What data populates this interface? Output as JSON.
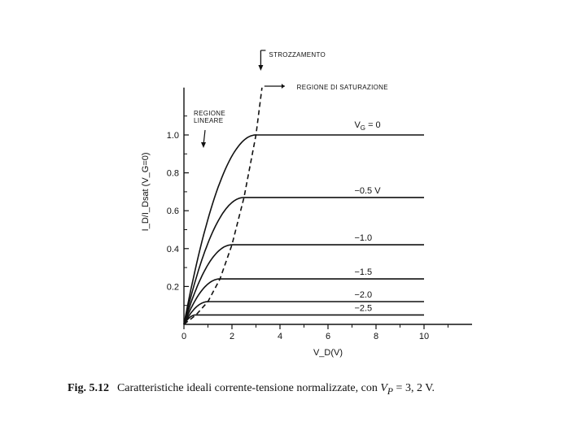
{
  "chart_data": {
    "type": "line",
    "xlabel": "V_D(V)",
    "ylabel": "I_D/I_Dsat (V_G=0)",
    "xlim": [
      0,
      12
    ],
    "ylim": [
      0,
      1.25
    ],
    "x_ticks": [
      "0",
      "2",
      "4",
      "6",
      "8",
      "10"
    ],
    "y_ticks": [
      "0.2",
      "0.4",
      "0.6",
      "0.8",
      "1.0"
    ],
    "grid": false,
    "series": [
      {
        "name": "V_G = 0",
        "label": "V",
        "label_sub": "G",
        "label_rest": " = 0",
        "vsat": 3.0,
        "isat": 1.0
      },
      {
        "name": "-0.5 V",
        "label": "−0.5 V",
        "vsat": 2.5,
        "isat": 0.67
      },
      {
        "name": "-1.0",
        "label": "−1.0",
        "vsat": 2.0,
        "isat": 0.42
      },
      {
        "name": "-1.5",
        "label": "−1.5",
        "vsat": 1.5,
        "isat": 0.24
      },
      {
        "name": "-2.0",
        "label": "−2.0",
        "vsat": 1.0,
        "isat": 0.12
      },
      {
        "name": "-2.5",
        "label": "−2.5",
        "vsat": 0.5,
        "isat": 0.05
      }
    ],
    "pinchoff_curve": {
      "style": "dashed"
    },
    "annotations": {
      "pinchoff": "STROZZAMENTO",
      "saturation": "REGIONE DI SATURAZIONE",
      "linear_line1": "REGIONE",
      "linear_line2": "LINEARE"
    }
  },
  "caption": {
    "fig_number": "Fig. 5.12",
    "text": "Caratteristiche ideali corrente-tensione normalizzate, con",
    "formula_var": "V",
    "formula_sub": "P",
    "formula_rest": " =  3, 2 V."
  }
}
